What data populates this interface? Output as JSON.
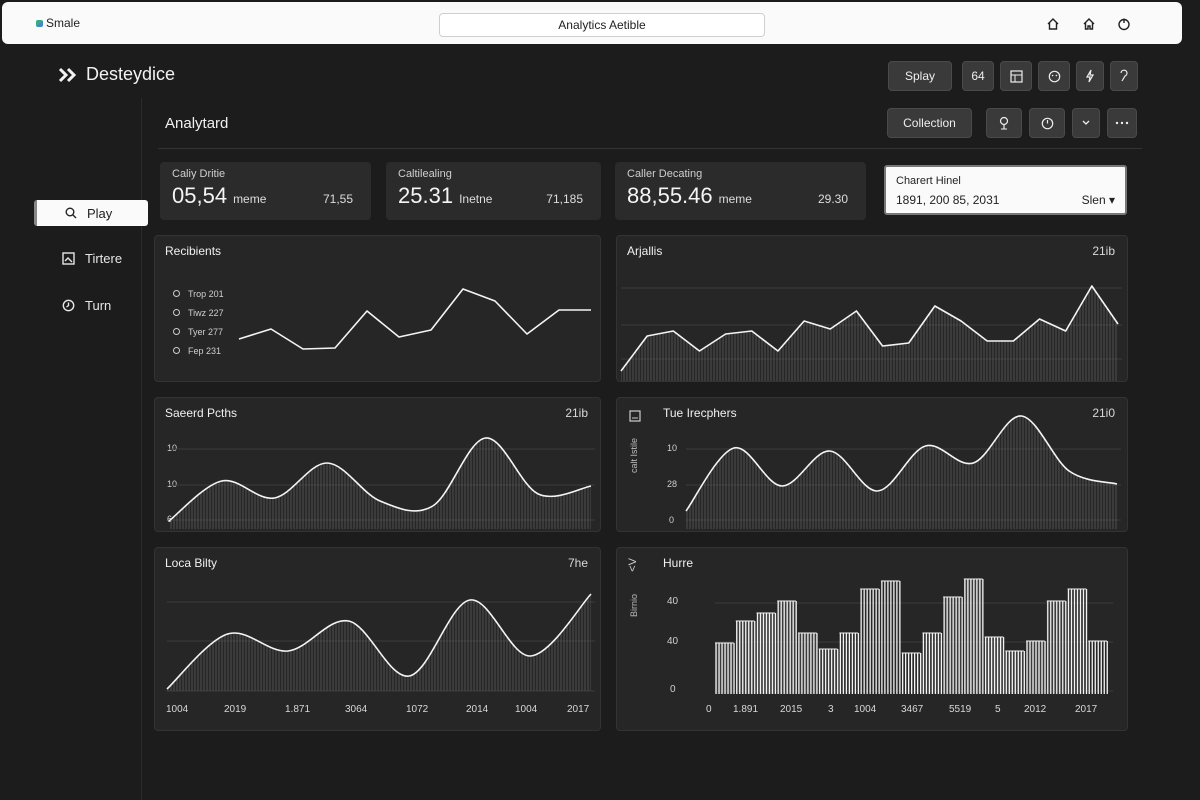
{
  "browser": {
    "brand": "Smale",
    "url": "Analytics Aetible"
  },
  "app": {
    "name": "Desteydice"
  },
  "sidebar": {
    "items": [
      {
        "label": "Play",
        "active": true
      },
      {
        "label": "Tirtere"
      },
      {
        "label": "Turn"
      }
    ]
  },
  "header": {
    "title": "Analytard",
    "primary_button": "Splay",
    "count_button": "64",
    "collection_button": "Collection"
  },
  "stats": [
    {
      "label": "Caliy Dritie",
      "value": "05,54",
      "unit": "meme",
      "side": "71,55"
    },
    {
      "label": "Caltilealing",
      "value": "25.31",
      "unit": "Inetne",
      "side": "71,185"
    },
    {
      "label": "Caller Decating",
      "value": "88,55.46",
      "unit": "meme",
      "side": "29.30"
    }
  ],
  "date_filter": {
    "label": "Charert Hinel",
    "value": "1891, 200 85, 2031",
    "selected": "Slen"
  },
  "panels": {
    "recipients": {
      "title": "Recibients",
      "legend": [
        "Trop 201",
        "Tiwz 227",
        "Tyer 277",
        "Fep 231"
      ]
    },
    "analytics": {
      "title": "Arjallis",
      "right": "21ib"
    },
    "speed": {
      "title": "Saeerd Pcths",
      "right": "21ib",
      "yticks": [
        "10",
        "10",
        "6"
      ]
    },
    "type": {
      "title": "Tue Irecphers",
      "right": "21i0",
      "yticks": [
        "10",
        "28",
        "0"
      ],
      "side_label": "calt Istile"
    },
    "local": {
      "title": "Loca Bilty",
      "right": "7he",
      "xticks": [
        "1004",
        "2019",
        "1.871",
        "3064",
        "1072",
        "2014",
        "1004",
        "2017"
      ]
    },
    "hure": {
      "title": "Hurre",
      "yticks": [
        "40",
        "40",
        "0"
      ],
      "side_label": "Birnio",
      "xticks": [
        "0",
        "1.891",
        "2015",
        "3",
        "1004",
        "3467",
        "5519",
        "5",
        "2012",
        "2017"
      ]
    }
  },
  "chart_data": [
    {
      "type": "line",
      "title": "Recibients",
      "values": [
        338,
        328,
        348,
        347,
        310,
        336,
        329,
        288,
        300,
        333,
        309,
        309
      ]
    },
    {
      "type": "area",
      "title": "Arjallis",
      "values": [
        370,
        335,
        330,
        350,
        333,
        330,
        350,
        320,
        328,
        310,
        345,
        342,
        305,
        320,
        340,
        340,
        318,
        330,
        285,
        323
      ]
    },
    {
      "type": "area",
      "title": "Saeerd Pcths",
      "values": [
        520,
        480,
        497,
        462,
        500,
        505,
        437,
        493,
        485
      ]
    },
    {
      "type": "area",
      "title": "Tue Irecphers",
      "values": [
        510,
        447,
        485,
        450,
        490,
        445,
        462,
        415,
        470,
        483
      ]
    },
    {
      "type": "area",
      "title": "Loca Bilty",
      "values": [
        688,
        633,
        650,
        620,
        675,
        599,
        655,
        593
      ]
    },
    {
      "type": "bar",
      "title": "Hurre",
      "values": [
        642,
        620,
        612,
        600,
        632,
        648,
        632,
        588,
        580,
        652,
        632,
        596,
        578,
        636,
        650,
        640,
        600,
        588,
        640
      ]
    }
  ]
}
